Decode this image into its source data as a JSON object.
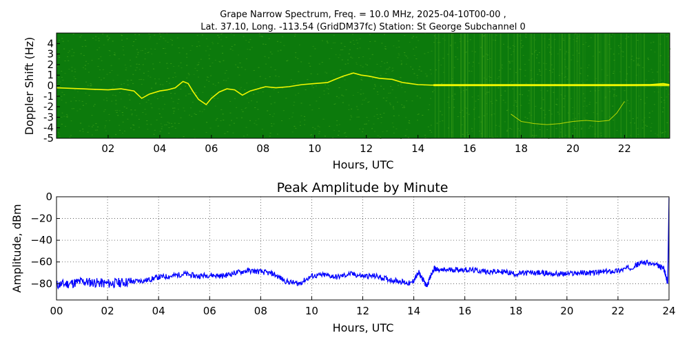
{
  "figure": {
    "title_line1": "Grape Narrow Spectrum, Freq. = 10.0 MHz, 2025-04-10T00-00 ,",
    "title_line2": "Lat.  37.10, Long. -113.54 (GridDM37fc) Station: St George Subchannel 0"
  },
  "colors": {
    "spectrogram_background": "#0c7a0c",
    "spectrogram_noise": "#3c9e18",
    "spectrogram_trace": "#ffff00",
    "amplitude_line": "#0000ff",
    "grid": "#444444"
  },
  "chart_data": [
    {
      "type": "heatmap",
      "xlabel": "Hours, UTC",
      "ylabel": "Doppler Shift (Hz)",
      "xlim": [
        0,
        23.75
      ],
      "ylim": [
        -5,
        5
      ],
      "xticks": [
        "02",
        "04",
        "06",
        "08",
        "10",
        "12",
        "14",
        "16",
        "18",
        "20",
        "22"
      ],
      "yticks": [
        "-5",
        "-4",
        "-3",
        "-2",
        "-1",
        "0",
        "1",
        "2",
        "3",
        "4"
      ],
      "grid": false,
      "traces": [
        {
          "name": "",
          "x": [
            0,
            1,
            2,
            2.5,
            3,
            3.3,
            3.6,
            4,
            4.3,
            4.6,
            4.9,
            5.1,
            5.3,
            5.5,
            5.8,
            6.0,
            6.3,
            6.6,
            6.9,
            7.2,
            7.5,
            7.8,
            8.1,
            8.5,
            9,
            9.5,
            10,
            10.5,
            10.8,
            11.1,
            11.5,
            11.8,
            12.1,
            12.5,
            13,
            13.4,
            13.7,
            14,
            14.5,
            15,
            16,
            17,
            18,
            19,
            20,
            21,
            22,
            23,
            23.5,
            23.75
          ],
          "y": [
            -0.2,
            -0.3,
            -0.4,
            -0.3,
            -0.5,
            -1.2,
            -0.8,
            -0.5,
            -0.4,
            -0.2,
            0.4,
            0.2,
            -0.6,
            -1.3,
            -1.8,
            -1.2,
            -0.6,
            -0.3,
            -0.4,
            -0.9,
            -0.5,
            -0.3,
            -0.1,
            -0.2,
            -0.1,
            0.1,
            0.2,
            0.3,
            0.6,
            0.9,
            1.2,
            1.0,
            0.9,
            0.7,
            0.6,
            0.3,
            0.2,
            0.1,
            0.05,
            0.05,
            0.05,
            0.05,
            0.05,
            0.05,
            0.05,
            0.05,
            0.05,
            0.1,
            0.2,
            0.1
          ]
        },
        {
          "name": "",
          "x": [
            17.6,
            18,
            18.5,
            19,
            19.5,
            20,
            20.5,
            21,
            21.4,
            21.7,
            22
          ],
          "y": [
            -2.7,
            -3.4,
            -3.6,
            -3.7,
            -3.6,
            -3.4,
            -3.3,
            -3.4,
            -3.3,
            -2.6,
            -1.5
          ]
        }
      ]
    },
    {
      "type": "line",
      "title": "Peak Amplitude by Minute",
      "xlabel": "Hours, UTC",
      "ylabel": "Amplitude, dBm",
      "xlim": [
        0,
        24
      ],
      "ylim": [
        -95,
        0
      ],
      "xticks": [
        "00",
        "02",
        "04",
        "06",
        "08",
        "10",
        "12",
        "14",
        "16",
        "18",
        "20",
        "22",
        "24"
      ],
      "yticks": [
        "0",
        "−20",
        "−40",
        "−60",
        "−80"
      ],
      "ytick_values": [
        0,
        -20,
        -40,
        -60,
        -80
      ],
      "grid": true,
      "series": [
        {
          "name": "",
          "x": [
            0,
            0.5,
            1,
            1.5,
            2,
            2.5,
            3,
            3.5,
            4,
            4.5,
            5,
            5.5,
            6,
            6.5,
            7,
            7.5,
            8,
            8.5,
            9,
            9.5,
            10,
            10.5,
            11,
            11.5,
            12,
            12.5,
            13,
            13.5,
            13.9,
            14.2,
            14.5,
            14.8,
            15,
            15.5,
            16,
            16.5,
            17,
            17.5,
            18,
            18.5,
            19,
            19.5,
            20,
            20.5,
            21,
            21.5,
            22,
            22.5,
            23,
            23.5,
            23.8,
            23.95,
            24
          ],
          "y": [
            -81,
            -80,
            -78,
            -79,
            -80,
            -79,
            -78,
            -77,
            -74,
            -73,
            -71,
            -73,
            -72,
            -73,
            -70,
            -68,
            -69,
            -71,
            -78,
            -80,
            -73,
            -72,
            -74,
            -71,
            -73,
            -73,
            -76,
            -78,
            -80,
            -70,
            -82,
            -66,
            -68,
            -67,
            -67,
            -68,
            -69,
            -69,
            -71,
            -70,
            -70,
            -71,
            -71,
            -70,
            -70,
            -69,
            -68,
            -65,
            -60,
            -63,
            -66,
            -80,
            -1
          ]
        }
      ]
    }
  ]
}
